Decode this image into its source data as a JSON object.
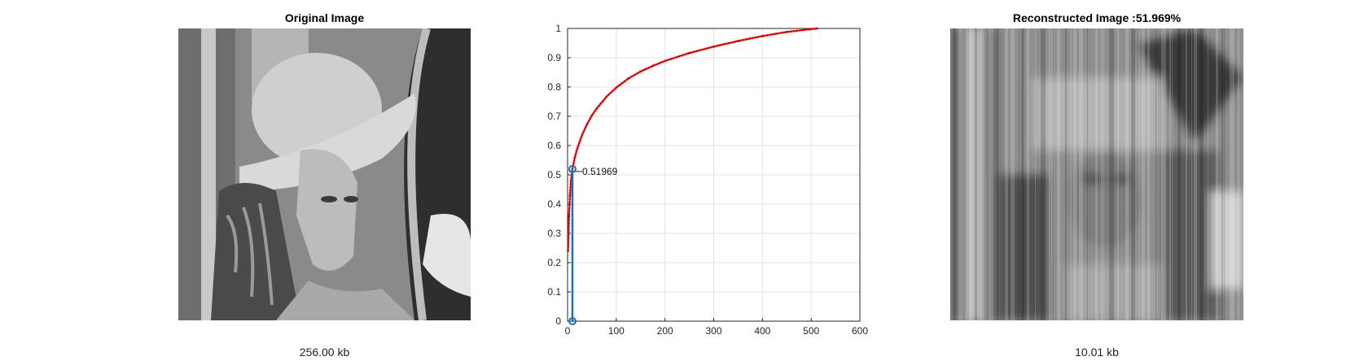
{
  "panels": {
    "left": {
      "title": "Original Image",
      "size_label": "256.00 kb"
    },
    "right": {
      "title": "Reconstructed Image :51.969%",
      "size_label": "10.01 kb"
    }
  },
  "colors": {
    "curve": "#e60000",
    "stem": "#1f6fb2",
    "grid": "#e3e3e3",
    "axis": "#262626"
  },
  "chart_data": {
    "type": "line",
    "title": "",
    "xlabel": "",
    "ylabel": "",
    "xlim": [
      0,
      600
    ],
    "ylim": [
      0,
      1
    ],
    "xticks": [
      0,
      100,
      200,
      300,
      400,
      500,
      600
    ],
    "yticks": [
      0,
      0.1,
      0.2,
      0.3,
      0.4,
      0.5,
      0.6,
      0.7,
      0.8,
      0.9,
      1
    ],
    "grid": true,
    "series": [
      {
        "style": "red dotted cumulative curve",
        "x": [
          1,
          3,
          5,
          7,
          10,
          15,
          20,
          30,
          40,
          50,
          60,
          80,
          100,
          125,
          150,
          175,
          200,
          250,
          300,
          350,
          400,
          450,
          500,
          512
        ],
        "y": [
          0.24,
          0.36,
          0.43,
          0.48,
          0.52,
          0.56,
          0.59,
          0.637,
          0.673,
          0.703,
          0.727,
          0.767,
          0.798,
          0.829,
          0.853,
          0.872,
          0.889,
          0.916,
          0.938,
          0.957,
          0.974,
          0.988,
          0.998,
          1.0
        ]
      },
      {
        "style": "blue stem",
        "x": [
          10,
          10
        ],
        "y": [
          0,
          0.51969
        ]
      }
    ],
    "annotations": [
      {
        "x": 10,
        "y": 0.51969,
        "text": "0.51969"
      }
    ]
  }
}
